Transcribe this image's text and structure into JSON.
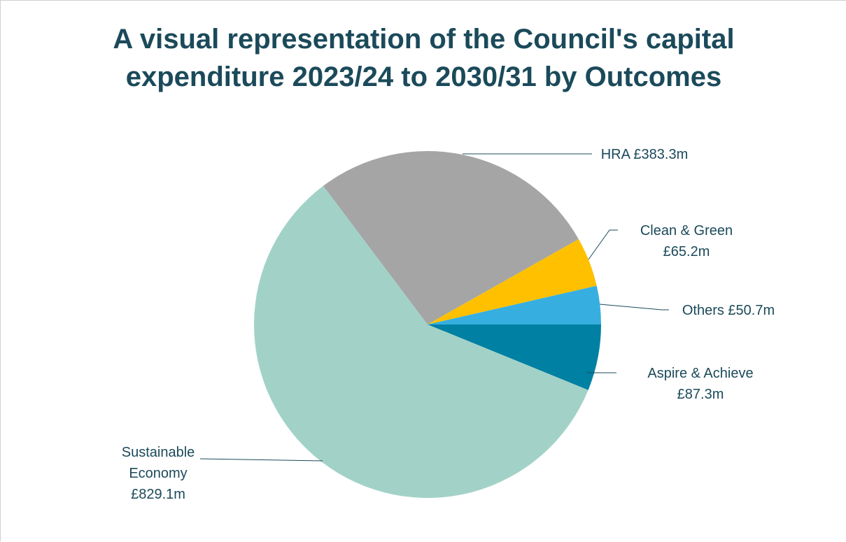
{
  "chart_data": {
    "type": "pie",
    "title_lines": [
      "A visual representation of the Council's capital",
      "expenditure 2023/24 to 2030/31 by Outcomes"
    ],
    "slices": [
      {
        "label_lines": [
          "Aspire & Achieve",
          "£87.3m"
        ],
        "value": 87.3,
        "color": "#0080a3"
      },
      {
        "label_lines": [
          "Sustainable",
          "Economy",
          "£829.1m"
        ],
        "value": 829.1,
        "color": "#a2d2c7"
      },
      {
        "label_lines": [
          "HRA £383.3m"
        ],
        "value": 383.3,
        "color": "#a5a5a5"
      },
      {
        "label_lines": [
          "Clean & Green",
          "£65.2m"
        ],
        "value": 65.2,
        "color": "#ffc000"
      },
      {
        "label_lines": [
          "Others £50.7m"
        ],
        "value": 50.7,
        "color": "#36afe0"
      }
    ],
    "leader_line_color": "#1b4a5a",
    "start_angle": "east",
    "direction": "clockwise",
    "legend": "none"
  }
}
